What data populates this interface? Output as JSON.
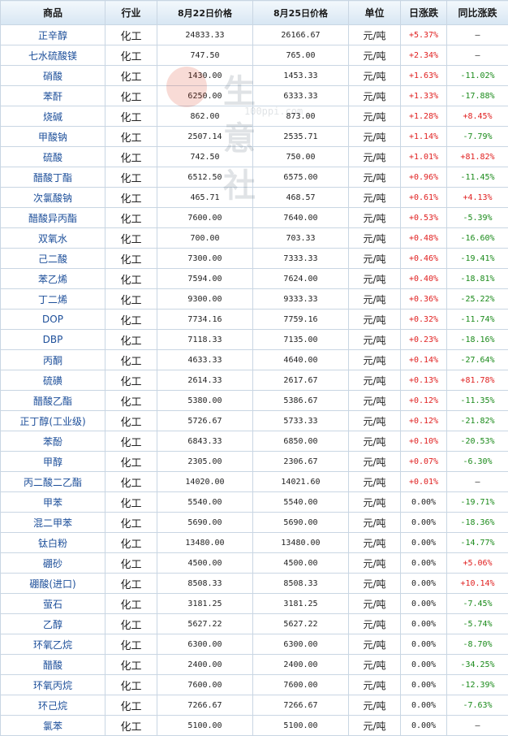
{
  "header": {
    "product": "商品",
    "industry": "行业",
    "date1": "8月22日价格",
    "date2": "8月25日价格",
    "unit": "单位",
    "daily": "日涨跌",
    "yoy": "同比涨跌"
  },
  "watermark": {
    "name": "生意社",
    "url": "100ppi.com"
  },
  "rows": [
    {
      "name": "正辛醇",
      "industry": "化工",
      "p1": "24833.33",
      "p2": "26166.67",
      "unit": "元/吨",
      "daily": "+5.37%",
      "yoy": "—"
    },
    {
      "name": "七水硫酸镁",
      "industry": "化工",
      "p1": "747.50",
      "p2": "765.00",
      "unit": "元/吨",
      "daily": "+2.34%",
      "yoy": "—"
    },
    {
      "name": "硝酸",
      "industry": "化工",
      "p1": "1430.00",
      "p2": "1453.33",
      "unit": "元/吨",
      "daily": "+1.63%",
      "yoy": "-11.02%"
    },
    {
      "name": "苯酐",
      "industry": "化工",
      "p1": "6250.00",
      "p2": "6333.33",
      "unit": "元/吨",
      "daily": "+1.33%",
      "yoy": "-17.88%"
    },
    {
      "name": "烧碱",
      "industry": "化工",
      "p1": "862.00",
      "p2": "873.00",
      "unit": "元/吨",
      "daily": "+1.28%",
      "yoy": "+8.45%"
    },
    {
      "name": "甲酸钠",
      "industry": "化工",
      "p1": "2507.14",
      "p2": "2535.71",
      "unit": "元/吨",
      "daily": "+1.14%",
      "yoy": "-7.79%"
    },
    {
      "name": "硫酸",
      "industry": "化工",
      "p1": "742.50",
      "p2": "750.00",
      "unit": "元/吨",
      "daily": "+1.01%",
      "yoy": "+81.82%"
    },
    {
      "name": "醋酸丁酯",
      "industry": "化工",
      "p1": "6512.50",
      "p2": "6575.00",
      "unit": "元/吨",
      "daily": "+0.96%",
      "yoy": "-11.45%"
    },
    {
      "name": "次氯酸钠",
      "industry": "化工",
      "p1": "465.71",
      "p2": "468.57",
      "unit": "元/吨",
      "daily": "+0.61%",
      "yoy": "+4.13%"
    },
    {
      "name": "醋酸异丙酯",
      "industry": "化工",
      "p1": "7600.00",
      "p2": "7640.00",
      "unit": "元/吨",
      "daily": "+0.53%",
      "yoy": "-5.39%"
    },
    {
      "name": "双氧水",
      "industry": "化工",
      "p1": "700.00",
      "p2": "703.33",
      "unit": "元/吨",
      "daily": "+0.48%",
      "yoy": "-16.60%"
    },
    {
      "name": "己二酸",
      "industry": "化工",
      "p1": "7300.00",
      "p2": "7333.33",
      "unit": "元/吨",
      "daily": "+0.46%",
      "yoy": "-19.41%"
    },
    {
      "name": "苯乙烯",
      "industry": "化工",
      "p1": "7594.00",
      "p2": "7624.00",
      "unit": "元/吨",
      "daily": "+0.40%",
      "yoy": "-18.81%"
    },
    {
      "name": "丁二烯",
      "industry": "化工",
      "p1": "9300.00",
      "p2": "9333.33",
      "unit": "元/吨",
      "daily": "+0.36%",
      "yoy": "-25.22%"
    },
    {
      "name": "DOP",
      "industry": "化工",
      "p1": "7734.16",
      "p2": "7759.16",
      "unit": "元/吨",
      "daily": "+0.32%",
      "yoy": "-11.74%"
    },
    {
      "name": "DBP",
      "industry": "化工",
      "p1": "7118.33",
      "p2": "7135.00",
      "unit": "元/吨",
      "daily": "+0.23%",
      "yoy": "-18.16%"
    },
    {
      "name": "丙酮",
      "industry": "化工",
      "p1": "4633.33",
      "p2": "4640.00",
      "unit": "元/吨",
      "daily": "+0.14%",
      "yoy": "-27.64%"
    },
    {
      "name": "硫磺",
      "industry": "化工",
      "p1": "2614.33",
      "p2": "2617.67",
      "unit": "元/吨",
      "daily": "+0.13%",
      "yoy": "+81.78%"
    },
    {
      "name": "醋酸乙酯",
      "industry": "化工",
      "p1": "5380.00",
      "p2": "5386.67",
      "unit": "元/吨",
      "daily": "+0.12%",
      "yoy": "-11.35%"
    },
    {
      "name": "正丁醇(工业级)",
      "industry": "化工",
      "p1": "5726.67",
      "p2": "5733.33",
      "unit": "元/吨",
      "daily": "+0.12%",
      "yoy": "-21.82%"
    },
    {
      "name": "苯酚",
      "industry": "化工",
      "p1": "6843.33",
      "p2": "6850.00",
      "unit": "元/吨",
      "daily": "+0.10%",
      "yoy": "-20.53%"
    },
    {
      "name": "甲醇",
      "industry": "化工",
      "p1": "2305.00",
      "p2": "2306.67",
      "unit": "元/吨",
      "daily": "+0.07%",
      "yoy": "-6.30%"
    },
    {
      "name": "丙二酸二乙酯",
      "industry": "化工",
      "p1": "14020.00",
      "p2": "14021.60",
      "unit": "元/吨",
      "daily": "+0.01%",
      "yoy": "—"
    },
    {
      "name": "甲苯",
      "industry": "化工",
      "p1": "5540.00",
      "p2": "5540.00",
      "unit": "元/吨",
      "daily": "0.00%",
      "yoy": "-19.71%"
    },
    {
      "name": "混二甲苯",
      "industry": "化工",
      "p1": "5690.00",
      "p2": "5690.00",
      "unit": "元/吨",
      "daily": "0.00%",
      "yoy": "-18.36%"
    },
    {
      "name": "钛白粉",
      "industry": "化工",
      "p1": "13480.00",
      "p2": "13480.00",
      "unit": "元/吨",
      "daily": "0.00%",
      "yoy": "-14.77%"
    },
    {
      "name": "硼砂",
      "industry": "化工",
      "p1": "4500.00",
      "p2": "4500.00",
      "unit": "元/吨",
      "daily": "0.00%",
      "yoy": "+5.06%"
    },
    {
      "name": "硼酸(进口)",
      "industry": "化工",
      "p1": "8508.33",
      "p2": "8508.33",
      "unit": "元/吨",
      "daily": "0.00%",
      "yoy": "+10.14%"
    },
    {
      "name": "萤石",
      "industry": "化工",
      "p1": "3181.25",
      "p2": "3181.25",
      "unit": "元/吨",
      "daily": "0.00%",
      "yoy": "-7.45%"
    },
    {
      "name": "乙醇",
      "industry": "化工",
      "p1": "5627.22",
      "p2": "5627.22",
      "unit": "元/吨",
      "daily": "0.00%",
      "yoy": "-5.74%"
    },
    {
      "name": "环氧乙烷",
      "industry": "化工",
      "p1": "6300.00",
      "p2": "6300.00",
      "unit": "元/吨",
      "daily": "0.00%",
      "yoy": "-8.70%"
    },
    {
      "name": "醋酸",
      "industry": "化工",
      "p1": "2400.00",
      "p2": "2400.00",
      "unit": "元/吨",
      "daily": "0.00%",
      "yoy": "-34.25%"
    },
    {
      "name": "环氧丙烷",
      "industry": "化工",
      "p1": "7600.00",
      "p2": "7600.00",
      "unit": "元/吨",
      "daily": "0.00%",
      "yoy": "-12.39%"
    },
    {
      "name": "环己烷",
      "industry": "化工",
      "p1": "7266.67",
      "p2": "7266.67",
      "unit": "元/吨",
      "daily": "0.00%",
      "yoy": "-7.63%"
    },
    {
      "name": "氯苯",
      "industry": "化工",
      "p1": "5100.00",
      "p2": "5100.00",
      "unit": "元/吨",
      "daily": "0.00%",
      "yoy": "—"
    }
  ]
}
